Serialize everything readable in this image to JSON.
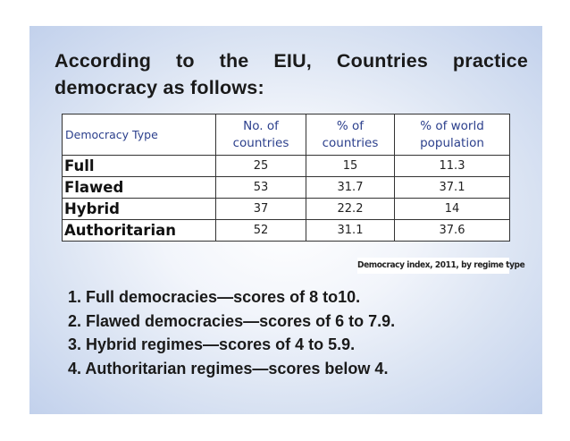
{
  "title": {
    "line1": "According to the EIU, Countries practice",
    "line2": "democracy as follows:"
  },
  "table": {
    "headers": {
      "type": "Democracy Type",
      "count_line1": "No. of",
      "count_line2": "countries",
      "pct_line1": "% of",
      "pct_line2": "countries",
      "pop_line1": "% of world",
      "pop_line2": "population"
    },
    "rows": [
      {
        "type": "Full",
        "count": "25",
        "pct": "15",
        "pop": "11.3"
      },
      {
        "type": "Flawed",
        "count": "53",
        "pct": "31.7",
        "pop": "37.1"
      },
      {
        "type": "Hybrid",
        "count": "37",
        "pct": "22.2",
        "pop": "14"
      },
      {
        "type": "Authoritarian",
        "count": "52",
        "pct": "31.1",
        "pop": "37.6"
      }
    ]
  },
  "caption": "Democracy index, 2011, by regime type",
  "notes": [
    "1. Full democracies—scores of 8 to10.",
    "2. Flawed democracies—scores of 6 to 7.9.",
    "3. Hybrid regimes—scores of 4 to 5.9.",
    "4. Authoritarian regimes—scores below 4."
  ]
}
